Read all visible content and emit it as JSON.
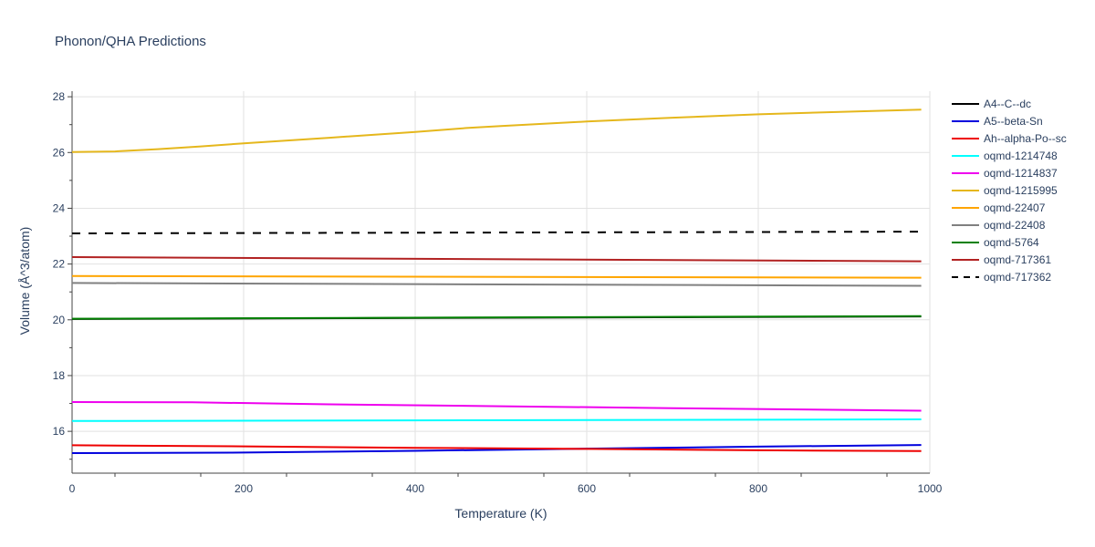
{
  "chart_data": {
    "type": "line",
    "title": "Phonon/QHA Predictions",
    "xlabel": "Temperature (K)",
    "ylabel": "Volume (Å^3/atom)",
    "xlim": [
      0,
      1000
    ],
    "ylim": [
      14.5,
      28.2
    ],
    "xticks": [
      0,
      200,
      400,
      600,
      800,
      1000
    ],
    "yticks": [
      16,
      18,
      20,
      22,
      24,
      26,
      28
    ],
    "grid": true,
    "legend_position": "right",
    "series": [
      {
        "name": "A4--C--dc",
        "color": "#000000",
        "dash": "solid",
        "x": [
          0,
          990
        ],
        "y": [
          20.03,
          20.12
        ]
      },
      {
        "name": "A5--beta-Sn",
        "color": "#0000dd",
        "dash": "solid",
        "x": [
          0,
          200,
          400,
          600,
          800,
          990
        ],
        "y": [
          15.22,
          15.24,
          15.3,
          15.38,
          15.45,
          15.51
        ]
      },
      {
        "name": "Ah--alpha-Po--sc",
        "color": "#ee0000",
        "dash": "solid",
        "x": [
          0,
          200,
          400,
          600,
          800,
          990
        ],
        "y": [
          15.5,
          15.46,
          15.41,
          15.37,
          15.32,
          15.29
        ]
      },
      {
        "name": "oqmd-1214748",
        "color": "#00ffff",
        "dash": "solid",
        "x": [
          0,
          990
        ],
        "y": [
          16.37,
          16.43
        ]
      },
      {
        "name": "oqmd-1214837",
        "color": "#ee00ee",
        "dash": "solid",
        "x": [
          0,
          140,
          300,
          500,
          700,
          990
        ],
        "y": [
          17.05,
          17.04,
          16.97,
          16.9,
          16.83,
          16.74
        ]
      },
      {
        "name": "oqmd-1215995",
        "color": "#e5b71c",
        "dash": "solid",
        "x": [
          0,
          50,
          100,
          150,
          200,
          300,
          400,
          460,
          500,
          600,
          700,
          800,
          900,
          990
        ],
        "y": [
          26.02,
          26.04,
          26.12,
          26.22,
          26.33,
          26.53,
          26.74,
          26.88,
          26.95,
          27.11,
          27.25,
          27.37,
          27.46,
          27.54
        ]
      },
      {
        "name": "oqmd-22407",
        "color": "#ffa500",
        "dash": "solid",
        "x": [
          0,
          990
        ],
        "y": [
          21.57,
          21.51
        ]
      },
      {
        "name": "oqmd-22408",
        "color": "#808080",
        "dash": "solid",
        "x": [
          0,
          990
        ],
        "y": [
          21.32,
          21.22
        ]
      },
      {
        "name": "oqmd-5764",
        "color": "#008000",
        "dash": "solid",
        "x": [
          0,
          990
        ],
        "y": [
          20.04,
          20.13
        ]
      },
      {
        "name": "oqmd-717361",
        "color": "#b22222",
        "dash": "solid",
        "x": [
          0,
          990
        ],
        "y": [
          22.25,
          22.1
        ]
      },
      {
        "name": "oqmd-717362",
        "color": "#000000",
        "dash": "dash",
        "x": [
          0,
          990
        ],
        "y": [
          23.1,
          23.16
        ]
      }
    ]
  }
}
